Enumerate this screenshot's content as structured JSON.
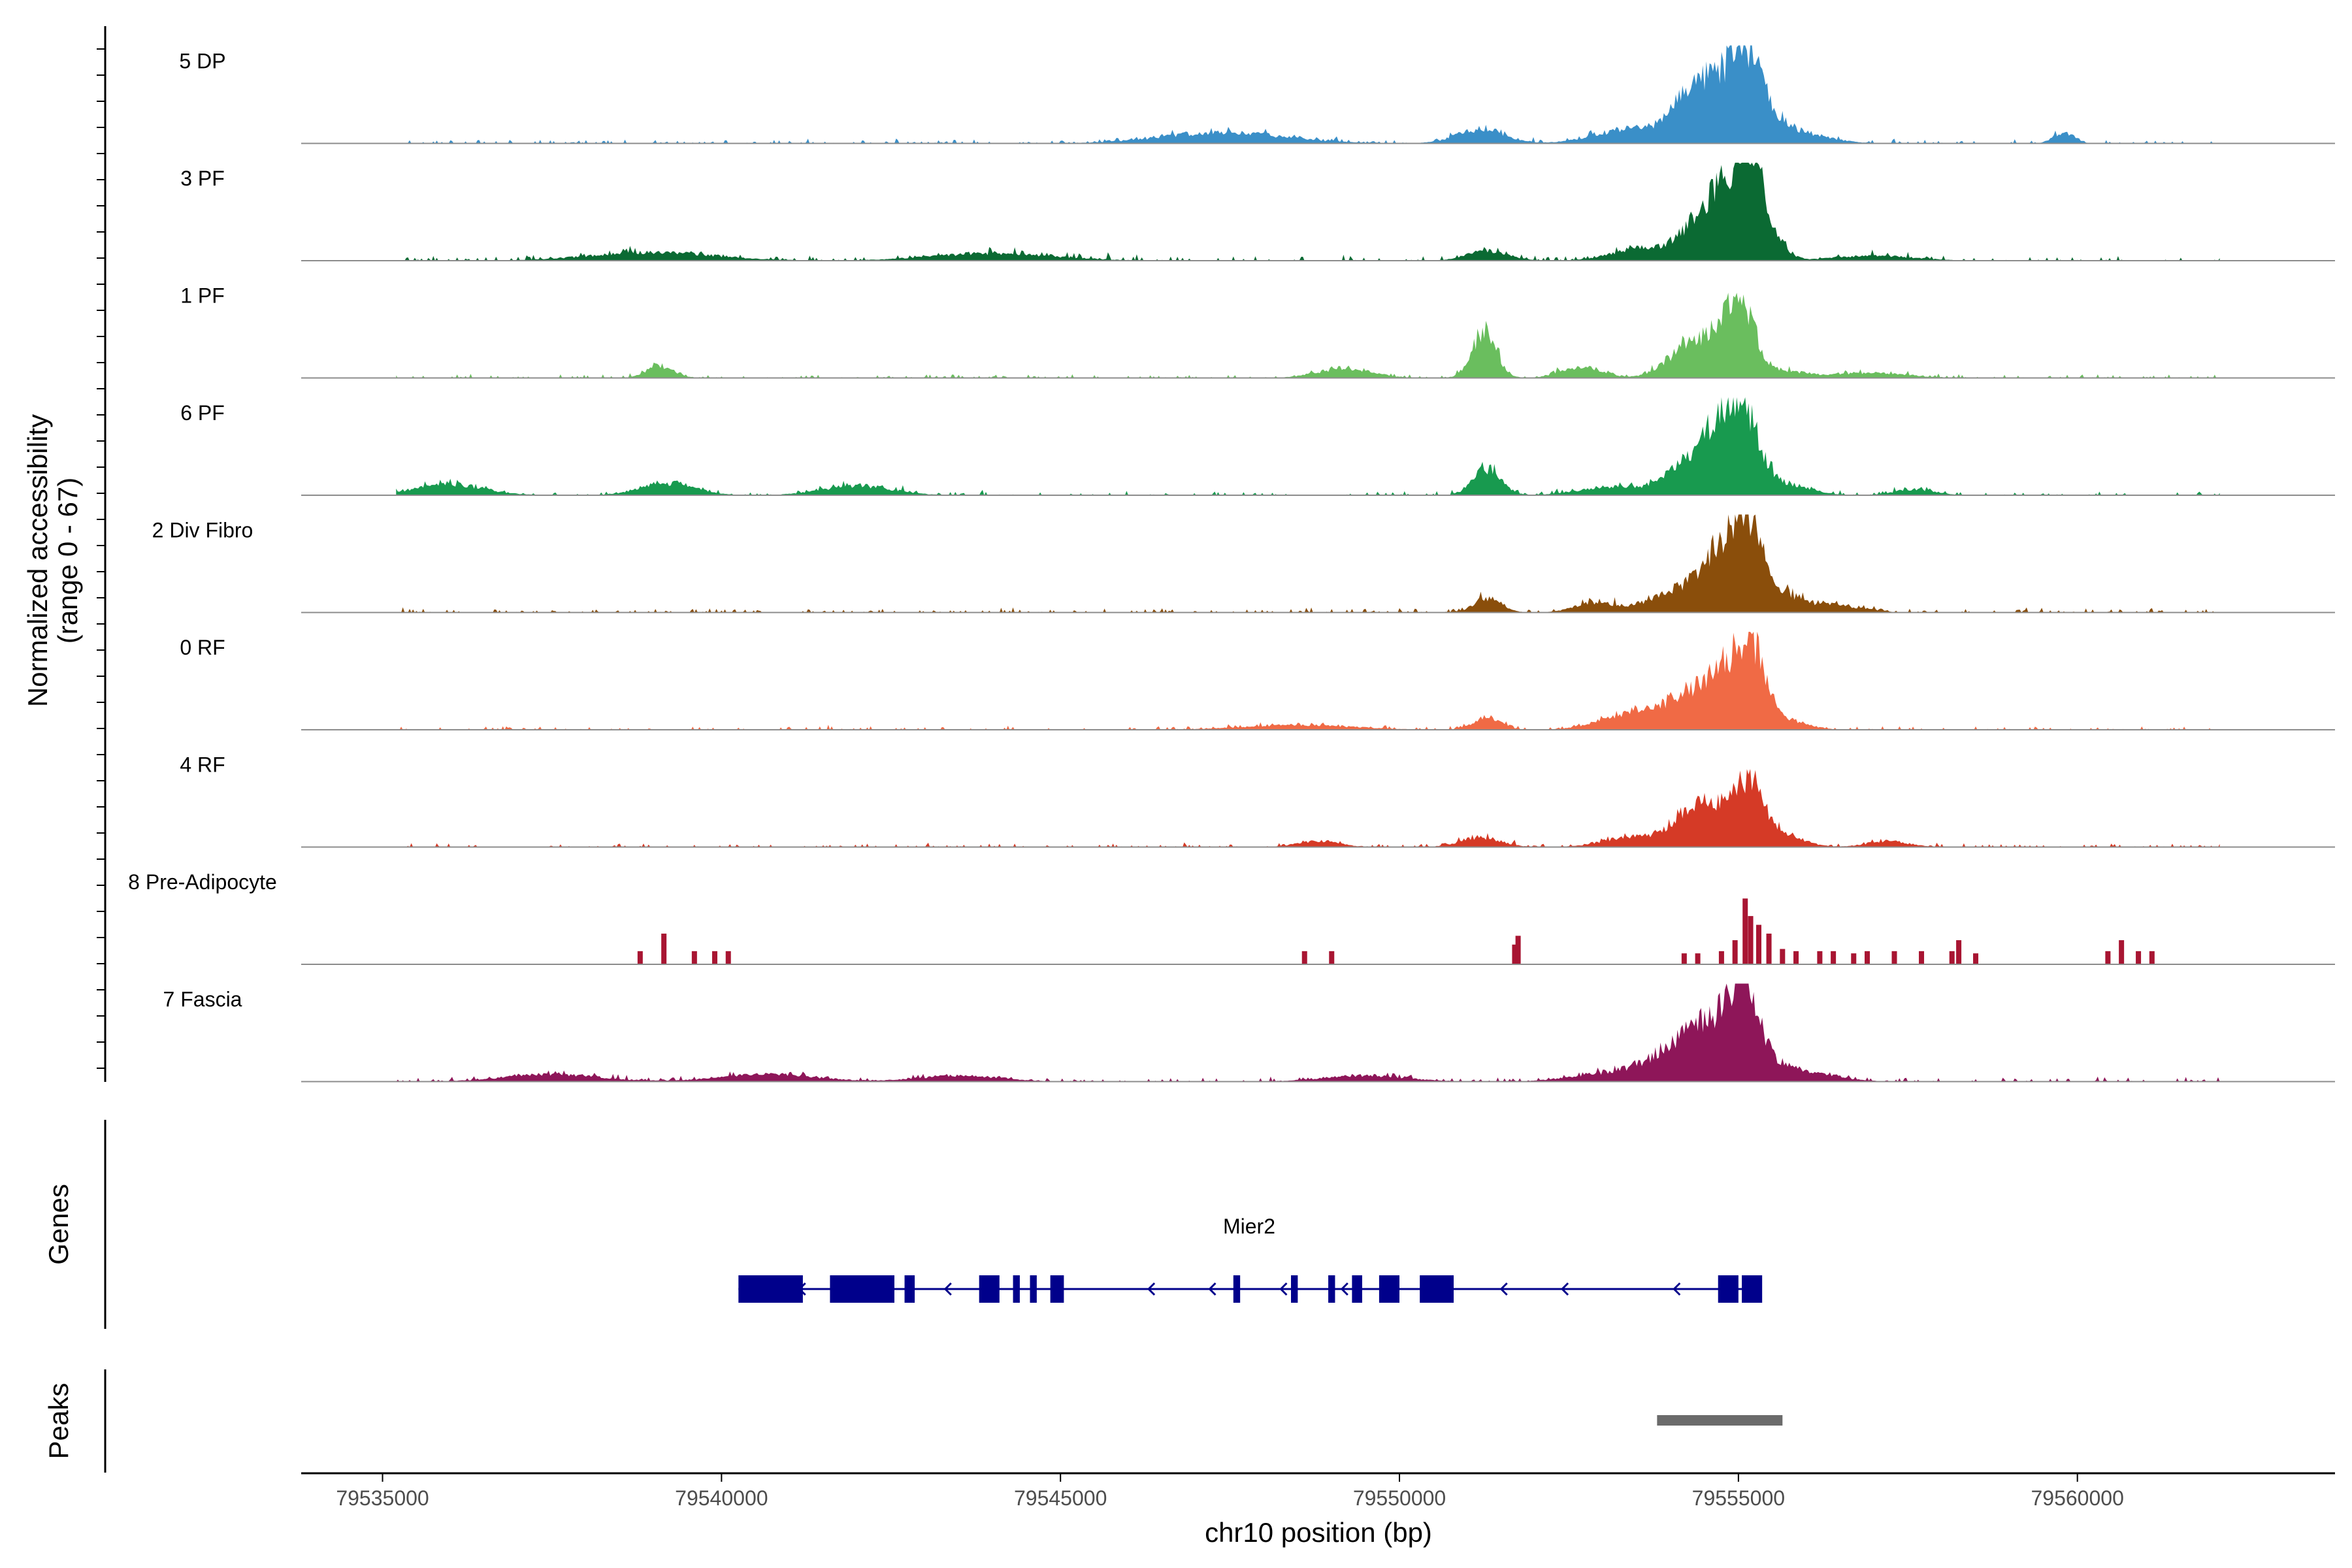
{
  "chart_data": {
    "type": "area",
    "title": "",
    "ylabel": "Normalized accessibility",
    "ylabel_range": "(range 0 - 67)",
    "ylim": [
      0,
      67
    ],
    "xlabel": "chr10 position (bp)",
    "xlim": [
      79533800,
      79563800
    ],
    "xticks": [
      79535000,
      79540000,
      79545000,
      79550000,
      79555000,
      79560000
    ],
    "xtick_labels": [
      "79535000",
      "79540000",
      "79545000",
      "79550000",
      "79555000",
      "79560000"
    ],
    "tracks": [
      {
        "name": "5 DP",
        "color": "#3A8FC8",
        "peaks": [
          [
            79547400,
            9,
            900
          ],
          [
            79551200,
            12,
            350
          ],
          [
            79553400,
            12,
            500
          ],
          [
            79554200,
            30,
            250
          ],
          [
            79554600,
            36,
            250
          ],
          [
            79555050,
            62,
            220
          ],
          [
            79555350,
            25,
            300
          ],
          [
            79556000,
            7,
            400
          ],
          [
            79559800,
            9,
            150
          ]
        ],
        "noise": 3
      },
      {
        "name": "3 PF",
        "color": "#0B6A33",
        "peaks": [
          [
            79539000,
            7,
            900
          ],
          [
            79544000,
            6,
            900
          ],
          [
            79551300,
            8,
            300
          ],
          [
            79553600,
            10,
            450
          ],
          [
            79554300,
            18,
            250
          ],
          [
            79554700,
            42,
            250
          ],
          [
            79555000,
            45,
            200
          ],
          [
            79555200,
            57,
            150
          ],
          [
            79555450,
            25,
            200
          ],
          [
            79557000,
            4,
            600
          ]
        ],
        "noise": 3.5
      },
      {
        "name": "1 PF",
        "color": "#6ABE5E",
        "peaks": [
          [
            79539100,
            10,
            200
          ],
          [
            79549200,
            8,
            400
          ],
          [
            79551250,
            38,
            180
          ],
          [
            79552700,
            9,
            300
          ],
          [
            79554200,
            22,
            300
          ],
          [
            79554700,
            27,
            250
          ],
          [
            79555050,
            50,
            200
          ],
          [
            79555600,
            6,
            400
          ],
          [
            79557000,
            4,
            500
          ]
        ],
        "noise": 2.8
      },
      {
        "name": "6 PF",
        "color": "#189A4F",
        "peaks": [
          [
            79536000,
            9,
            500
          ],
          [
            79539200,
            10,
            400
          ],
          [
            79542000,
            8,
            500
          ],
          [
            79551300,
            22,
            200
          ],
          [
            79553200,
            7,
            500
          ],
          [
            79554200,
            20,
            300
          ],
          [
            79554700,
            50,
            250
          ],
          [
            79555100,
            55,
            220
          ],
          [
            79555600,
            10,
            400
          ],
          [
            79557600,
            5,
            300
          ]
        ],
        "noise": 3
      },
      {
        "name": "2 Div Fibro",
        "color": "#8A4E0B",
        "peaks": [
          [
            79551300,
            12,
            200
          ],
          [
            79552900,
            8,
            300
          ],
          [
            79553800,
            10,
            300
          ],
          [
            79554300,
            20,
            250
          ],
          [
            79554750,
            50,
            220
          ],
          [
            79555150,
            64,
            200
          ],
          [
            79555600,
            15,
            300
          ],
          [
            79556400,
            6,
            400
          ]
        ],
        "noise": 3
      },
      {
        "name": "0 RF",
        "color": "#F06A45",
        "peaks": [
          [
            79548500,
            4,
            800
          ],
          [
            79551300,
            10,
            200
          ],
          [
            79553200,
            8,
            400
          ],
          [
            79553900,
            15,
            400
          ],
          [
            79554500,
            25,
            350
          ],
          [
            79554900,
            33,
            300
          ],
          [
            79555200,
            50,
            200
          ],
          [
            79555700,
            8,
            300
          ]
        ],
        "noise": 2.5
      },
      {
        "name": "4 RF",
        "color": "#D53A26",
        "peaks": [
          [
            79548800,
            5,
            300
          ],
          [
            79551200,
            8,
            300
          ],
          [
            79553400,
            8,
            400
          ],
          [
            79554300,
            25,
            300
          ],
          [
            79554800,
            20,
            400
          ],
          [
            79555150,
            42,
            220
          ],
          [
            79555700,
            8,
            300
          ],
          [
            79557200,
            5,
            300
          ]
        ],
        "noise": 2.5
      },
      {
        "name": "8 Pre-Adipocyte",
        "color": "#A81532",
        "bars": [
          [
            79538800,
            12
          ],
          [
            79539150,
            28
          ],
          [
            79539600,
            12
          ],
          [
            79539900,
            12
          ],
          [
            79540100,
            12
          ],
          [
            79548600,
            12
          ],
          [
            79549000,
            12
          ],
          [
            79551700,
            18
          ],
          [
            79551750,
            26
          ],
          [
            79554200,
            10
          ],
          [
            79554400,
            10
          ],
          [
            79554750,
            12
          ],
          [
            79554950,
            22
          ],
          [
            79555100,
            60
          ],
          [
            79555180,
            44
          ],
          [
            79555300,
            36
          ],
          [
            79555450,
            28
          ],
          [
            79555650,
            14
          ],
          [
            79555850,
            12
          ],
          [
            79556200,
            12
          ],
          [
            79556400,
            12
          ],
          [
            79556700,
            10
          ],
          [
            79556900,
            12
          ],
          [
            79557300,
            12
          ],
          [
            79557700,
            12
          ],
          [
            79558150,
            12
          ],
          [
            79558250,
            22
          ],
          [
            79558500,
            10
          ],
          [
            79560450,
            12
          ],
          [
            79560650,
            22
          ],
          [
            79560900,
            12
          ],
          [
            79561100,
            12
          ]
        ]
      },
      {
        "name": "7 Fascia",
        "color": "#8E1659",
        "peaks": [
          [
            79537500,
            6,
            700
          ],
          [
            79540700,
            6,
            700
          ],
          [
            79543500,
            5,
            600
          ],
          [
            79549500,
            5,
            600
          ],
          [
            79553000,
            6,
            500
          ],
          [
            79553800,
            12,
            400
          ],
          [
            79554300,
            28,
            350
          ],
          [
            79554800,
            38,
            300
          ],
          [
            79555100,
            62,
            200
          ],
          [
            79555600,
            12,
            300
          ],
          [
            79556200,
            5,
            400
          ]
        ],
        "noise": 3
      }
    ],
    "genes_label": "Genes",
    "gene": {
      "name": "Mier2",
      "strand": "-",
      "start": 79540250,
      "end": 79555150,
      "exons": [
        [
          79540250,
          79541200
        ],
        [
          79541600,
          79542550
        ],
        [
          79542700,
          79542850
        ],
        [
          79543800,
          79544100
        ],
        [
          79544300,
          79544400
        ],
        [
          79544550,
          79544650
        ],
        [
          79544850,
          79545050
        ],
        [
          79547550,
          79547650
        ],
        [
          79548400,
          79548500
        ],
        [
          79548950,
          79549050
        ],
        [
          79549300,
          79549450
        ],
        [
          79549700,
          79550000
        ],
        [
          79550300,
          79550800
        ],
        [
          79554700,
          79555000
        ],
        [
          79555050,
          79555350
        ]
      ],
      "arrows": [
        79541150,
        79543300,
        79546300,
        79547200,
        79548250,
        79549150,
        79550550,
        79551500,
        79552400,
        79554050
      ]
    },
    "peaks_label": "Peaks",
    "peaks_regions": [
      [
        79553800,
        79555650
      ]
    ]
  }
}
